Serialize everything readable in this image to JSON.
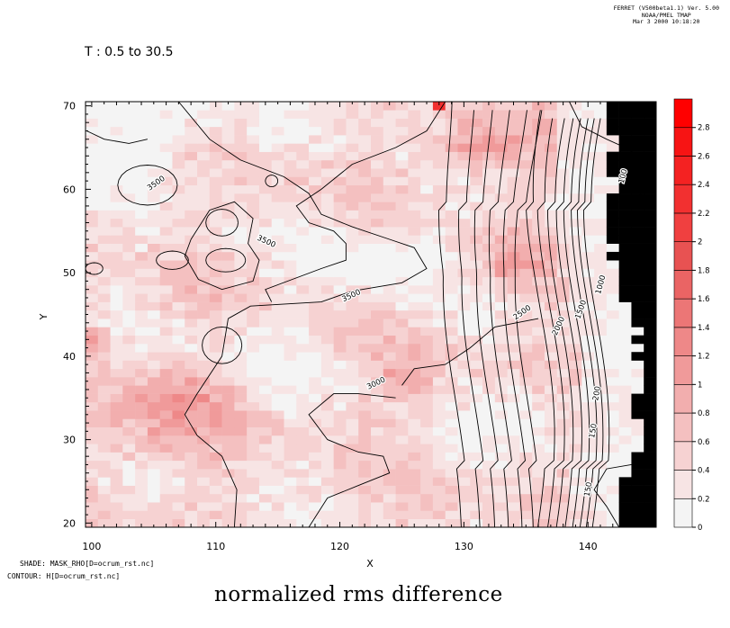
{
  "header": {
    "line1": "FERRET (V500beta1.1) Ver. 5.00",
    "line2": "NOAA/PMEL TMAP",
    "line3": "Mar  3 2000 10:18:20"
  },
  "subtitle": "T : 0.5 to 30.5",
  "footer": {
    "shade": "SHADE: MASK_RHO[D=ocrum_rst.nc]",
    "contour": "CONTOUR: H[D=ocrum_rst.nc]"
  },
  "chart_data": {
    "type": "heatmap",
    "title": "normalized rms difference",
    "xlabel": "X",
    "ylabel": "Y",
    "xlim": [
      99.5,
      145.5
    ],
    "ylim": [
      19.5,
      70.5
    ],
    "x_ticks": [
      100,
      110,
      120,
      130,
      140
    ],
    "x_tick_labels": [
      "100",
      "110",
      "120",
      "130",
      "140"
    ],
    "y_ticks": [
      20,
      30,
      40,
      50,
      60,
      70
    ],
    "y_tick_labels": [
      "20",
      "30",
      "40",
      "50",
      "60",
      "70"
    ],
    "colorbar": {
      "levels": [
        0,
        0.2,
        0.4,
        0.6,
        0.8,
        1,
        1.2,
        1.4,
        1.6,
        1.8,
        2,
        2.2,
        2.4,
        2.6,
        2.8
      ],
      "labels": [
        "0",
        "0.2",
        "0.4",
        "0.6",
        "0.8",
        "1",
        "1.2",
        "1.4",
        "1.6",
        "1.8",
        "2",
        "2.2",
        "2.4",
        "2.6",
        "2.8"
      ],
      "colors": [
        "#f4f4f4",
        "#f7e4e4",
        "#f6d2d2",
        "#f4c0c0",
        "#f2aeae",
        "#f09a9a",
        "#ee8888",
        "#ec7676",
        "#ea6464",
        "#e85252",
        "#f04040",
        "#f23030",
        "#f42222",
        "#f71414",
        "#ff0000"
      ]
    },
    "land_color": "#000000",
    "contour_labels": [
      {
        "text": "3500",
        "x": 105.3,
        "y": 60.5,
        "angle": -35
      },
      {
        "text": "3500",
        "x": 114.0,
        "y": 53.5,
        "angle": 25
      },
      {
        "text": "3500",
        "x": 121.0,
        "y": 47.0,
        "angle": -25
      },
      {
        "text": "3000",
        "x": 123.0,
        "y": 36.5,
        "angle": -25
      },
      {
        "text": "2500",
        "x": 134.8,
        "y": 45.0,
        "angle": -35
      },
      {
        "text": "2000",
        "x": 137.8,
        "y": 43.5,
        "angle": -65
      },
      {
        "text": "1500",
        "x": 139.6,
        "y": 45.5,
        "angle": -70
      },
      {
        "text": "1000",
        "x": 141.2,
        "y": 48.5,
        "angle": -75
      },
      {
        "text": "200",
        "x": 140.9,
        "y": 35.5,
        "angle": -80
      },
      {
        "text": "150",
        "x": 140.2,
        "y": 24.0,
        "angle": -80
      },
      {
        "text": "150",
        "x": 140.6,
        "y": 31.0,
        "angle": -80
      },
      {
        "text": "100",
        "x": 143.0,
        "y": 61.5,
        "angle": -75
      }
    ]
  }
}
